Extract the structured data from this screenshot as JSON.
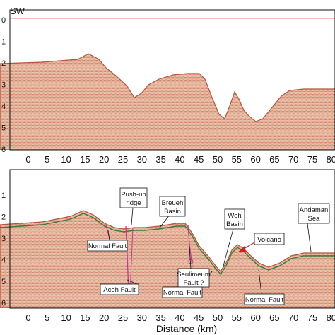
{
  "direction_label": "SW",
  "x_ticks": [
    "0",
    "5",
    "10",
    "15",
    "20",
    "25",
    "30",
    "35",
    "40",
    "45",
    "50",
    "55",
    "60",
    "65",
    "70",
    "75",
    "80"
  ],
  "y_ticks_top": [
    "0",
    "1",
    "2",
    "3",
    "4",
    "5",
    "6"
  ],
  "y_ticks_bottom": [
    "1",
    "2",
    "3",
    "4",
    "5",
    "6"
  ],
  "xlabel": "Distance (km)",
  "colors": {
    "seismic_fill": "#e7b39a",
    "reflector": "#b5533d",
    "interp_line": "#3a7a3a",
    "fault": "#c33a8a",
    "arrow_red": "#d42020"
  },
  "annotations": {
    "pushup_line1": "Push-up",
    "pushup_line2": "ridge",
    "breueh_line1": "Breueh",
    "breueh_line2": "Basin",
    "weh_line1": "Weh",
    "weh_line2": "Basin",
    "volcano": "Volcano",
    "andaman_line1": "Andaman",
    "andaman_line2": "Sea",
    "normal_fault_left": "Normal Fault",
    "seulimeum_line1": "Seulimeum",
    "seulimeum_line2": "Fault ?",
    "aceh_fault": "Aceh Fault",
    "normal_fault_mid": "Normal Fault",
    "normal_fault_right": "Normal Fault"
  }
}
